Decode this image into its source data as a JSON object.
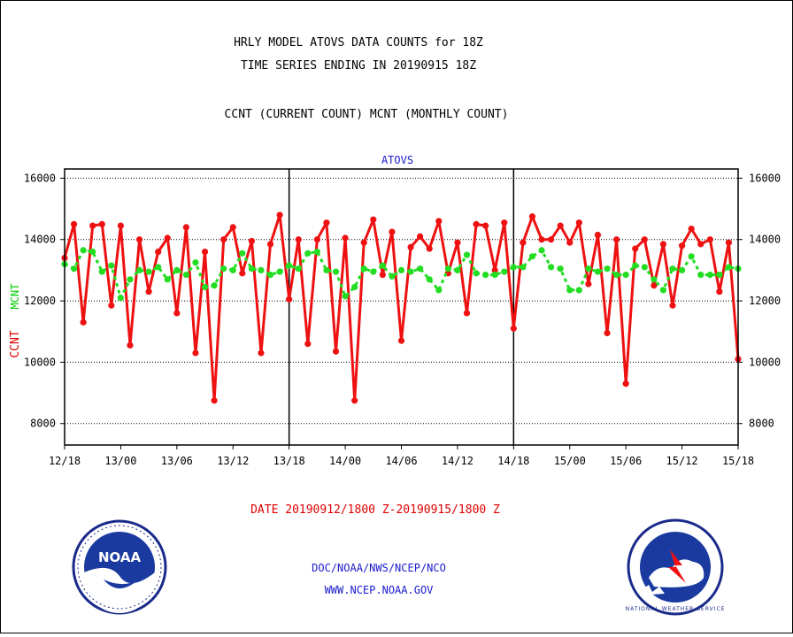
{
  "header": {
    "title_line1": "HRLY MODEL ATOVS DATA COUNTS for 18Z",
    "title_line2": "TIME SERIES ENDING IN 20190915 18Z",
    "subtitle": "CCNT (CURRENT COUNT) MCNT (MONTHLY COUNT)"
  },
  "footer": {
    "date_range": "DATE 20190912/1800 Z-20190915/1800 Z",
    "org": "DOC/NOAA/NWS/NCEP/NCO",
    "url": "WWW.NCEP.NOAA.GOV"
  },
  "logos": {
    "noaa_text": "NOAA",
    "nws_text": "NATIONAL WEATHER SERVICE"
  },
  "colors": {
    "ccnt": "#ee1111",
    "mcnt": "#22dd22",
    "text_blue": "#1a1ad0",
    "grid": "#000000"
  },
  "chart_data": {
    "type": "line",
    "title": "ATOVS",
    "ylabel_ccnt": "CCNT",
    "ylabel_mcnt": "MCNT",
    "ylim": [
      7300,
      16300
    ],
    "yticks": [
      8000,
      10000,
      12000,
      14000,
      16000
    ],
    "ytick_labels": [
      "8000",
      "10000",
      "12000",
      "14000",
      "16000"
    ],
    "xlim": [
      0,
      72
    ],
    "xticks": [
      0,
      6,
      12,
      18,
      24,
      30,
      36,
      42,
      48,
      54,
      60,
      66,
      72
    ],
    "xtick_labels": [
      "12/18",
      "13/00",
      "13/06",
      "13/12",
      "13/18",
      "14/00",
      "14/06",
      "14/12",
      "14/18",
      "15/00",
      "15/06",
      "15/12",
      "15/18"
    ],
    "vlines": [
      24,
      48
    ],
    "grid": true,
    "series": [
      {
        "name": "CCNT",
        "style": "solid",
        "values": [
          13400,
          14500,
          11300,
          14450,
          14500,
          11850,
          14450,
          10550,
          14000,
          12300,
          13600,
          14050,
          11600,
          14400,
          10300,
          13600,
          8750,
          14000,
          14400,
          12900,
          13950,
          10300,
          13850,
          14800,
          12050,
          14000,
          10600,
          14000,
          14550,
          10350,
          14050,
          8750,
          13900,
          14650,
          12850,
          14250,
          10700,
          13750,
          14100,
          13700,
          14600,
          12900,
          13900,
          11600,
          14500,
          14450,
          13000,
          14550,
          11100,
          13900,
          14750,
          14000,
          14000,
          14450,
          13900,
          14550,
          12550,
          14150,
          10950,
          14000,
          9300,
          13700,
          14000,
          12500,
          13850,
          11850,
          13800,
          14350,
          13850,
          14000,
          12300,
          13900,
          10100
        ]
      },
      {
        "name": "MCNT",
        "style": "dotted",
        "values": [
          13200,
          13050,
          13650,
          13600,
          12950,
          13150,
          12100,
          12700,
          13000,
          12950,
          13100,
          12700,
          13000,
          12850,
          13250,
          12450,
          12500,
          13050,
          13000,
          13550,
          13050,
          13000,
          12850,
          12950,
          13150,
          13050,
          13550,
          13600,
          13000,
          12950,
          12150,
          12450,
          13050,
          12950,
          13150,
          12800,
          13000,
          12950,
          13050,
          12700,
          12350,
          13050,
          13000,
          13500,
          12900,
          12850,
          12850,
          12950,
          13100,
          13100,
          13450,
          13650,
          13100,
          13050,
          12350,
          12350,
          13050,
          12950,
          13050,
          12850,
          12850,
          13150,
          13100,
          12700,
          12350,
          13050,
          13000,
          13450,
          12850,
          12850,
          12850,
          13100,
          13050
        ]
      }
    ]
  }
}
